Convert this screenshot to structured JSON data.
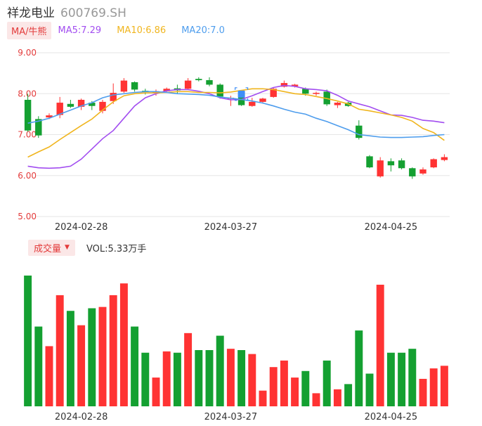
{
  "stock": {
    "name": "祥龙电业",
    "code": "600769.SH"
  },
  "ma_legend": {
    "button_label": "MA/牛熊",
    "items": [
      {
        "label": "MA5:7.29",
        "color": "#a24df0"
      },
      {
        "label": "MA10:6.86",
        "color": "#f0b51e"
      },
      {
        "label": "MA20:7.0",
        "color": "#4e9ded"
      }
    ]
  },
  "volume_legend": {
    "button_label": "成交量",
    "value_label": "VOL:5.33万手"
  },
  "colors": {
    "up": "#ff3333",
    "down": "#14a031",
    "grid": "#e6e6e6",
    "axis_text": "#e33b3b",
    "date_text": "#333333"
  },
  "chart_data": [
    {
      "type": "candlestick",
      "y_ticks": [
        "9.00",
        "8.00",
        "7.00",
        "6.00",
        "5.00"
      ],
      "ylim": [
        5.0,
        9.0
      ],
      "x_tick_labels": [
        {
          "index": 5,
          "label": "2024-02-28"
        },
        {
          "index": 19,
          "label": "2024-03-27"
        },
        {
          "index": 34,
          "label": "2024-04-25"
        }
      ],
      "candles": [
        {
          "o": 7.85,
          "h": 8.0,
          "l": 7.07,
          "c": 7.1
        },
        {
          "o": 7.38,
          "h": 7.45,
          "l": 6.92,
          "c": 6.98
        },
        {
          "o": 7.42,
          "h": 7.52,
          "l": 7.38,
          "c": 7.47
        },
        {
          "o": 7.48,
          "h": 7.92,
          "l": 7.4,
          "c": 7.78
        },
        {
          "o": 7.75,
          "h": 7.85,
          "l": 7.65,
          "c": 7.68
        },
        {
          "o": 7.68,
          "h": 7.88,
          "l": 7.6,
          "c": 7.85
        },
        {
          "o": 7.78,
          "h": 7.82,
          "l": 7.6,
          "c": 7.7
        },
        {
          "o": 7.58,
          "h": 7.85,
          "l": 7.52,
          "c": 7.8
        },
        {
          "o": 7.82,
          "h": 8.25,
          "l": 7.75,
          "c": 8.02
        },
        {
          "o": 8.05,
          "h": 8.38,
          "l": 8.02,
          "c": 8.32
        },
        {
          "o": 8.28,
          "h": 8.3,
          "l": 8.05,
          "c": 8.1
        },
        {
          "o": 8.07,
          "h": 8.12,
          "l": 7.98,
          "c": 8.05
        },
        {
          "o": 8.02,
          "h": 8.1,
          "l": 7.95,
          "c": 8.06
        },
        {
          "o": 8.06,
          "h": 8.15,
          "l": 8.03,
          "c": 8.12
        },
        {
          "o": 8.13,
          "h": 8.22,
          "l": 8.0,
          "c": 8.08
        },
        {
          "o": 8.12,
          "h": 8.38,
          "l": 8.1,
          "c": 8.32
        },
        {
          "o": 8.36,
          "h": 8.4,
          "l": 8.3,
          "c": 8.33
        },
        {
          "o": 8.33,
          "h": 8.4,
          "l": 8.18,
          "c": 8.22
        },
        {
          "o": 8.22,
          "h": 8.25,
          "l": 7.88,
          "c": 7.93
        },
        {
          "o": 7.9,
          "h": 7.95,
          "l": 7.7,
          "c": 7.9
        },
        {
          "o": 7.92,
          "h": 8.05,
          "l": 7.7,
          "c": 7.72
        },
        {
          "o": 7.7,
          "h": 7.9,
          "l": 7.68,
          "c": 7.8
        },
        {
          "o": 7.8,
          "h": 7.9,
          "l": 7.78,
          "c": 7.88
        },
        {
          "o": 7.92,
          "h": 8.15,
          "l": 7.9,
          "c": 8.12
        },
        {
          "o": 8.17,
          "h": 8.32,
          "l": 8.15,
          "c": 8.26
        },
        {
          "o": 8.18,
          "h": 8.24,
          "l": 8.15,
          "c": 8.22
        },
        {
          "o": 8.12,
          "h": 8.15,
          "l": 7.95,
          "c": 8.0
        },
        {
          "o": 8.0,
          "h": 8.05,
          "l": 7.95,
          "c": 8.02
        },
        {
          "o": 8.05,
          "h": 8.1,
          "l": 7.7,
          "c": 7.74
        },
        {
          "o": 7.72,
          "h": 7.8,
          "l": 7.65,
          "c": 7.78
        },
        {
          "o": 7.78,
          "h": 7.8,
          "l": 7.68,
          "c": 7.7
        },
        {
          "o": 7.22,
          "h": 7.35,
          "l": 6.88,
          "c": 6.92
        },
        {
          "o": 6.47,
          "h": 6.5,
          "l": 6.18,
          "c": 6.2
        },
        {
          "o": 5.98,
          "h": 6.45,
          "l": 5.95,
          "c": 6.37
        },
        {
          "o": 6.35,
          "h": 6.42,
          "l": 6.1,
          "c": 6.25
        },
        {
          "o": 6.37,
          "h": 6.42,
          "l": 6.15,
          "c": 6.18
        },
        {
          "o": 6.18,
          "h": 6.2,
          "l": 5.92,
          "c": 5.98
        },
        {
          "o": 6.05,
          "h": 6.2,
          "l": 6.02,
          "c": 6.15
        },
        {
          "o": 6.2,
          "h": 6.42,
          "l": 6.18,
          "c": 6.4
        },
        {
          "o": 6.38,
          "h": 6.52,
          "l": 6.35,
          "c": 6.45
        }
      ],
      "ma_lines": [
        {
          "name": "MA5",
          "color": "#a24df0",
          "values": [
            6.23,
            6.19,
            6.18,
            6.19,
            6.23,
            6.4,
            6.65,
            6.9,
            7.1,
            7.4,
            7.7,
            7.9,
            8.0,
            8.07,
            8.1,
            8.1,
            8.06,
            8.0,
            7.9,
            7.85,
            7.86,
            7.95,
            8.05,
            8.15,
            8.2,
            8.18,
            8.12,
            8.1,
            8.07,
            7.96,
            7.82,
            7.75,
            7.68,
            7.58,
            7.48,
            7.47,
            7.42,
            7.35,
            7.33,
            7.29
          ]
        },
        {
          "name": "MA10",
          "color": "#f0b51e",
          "values": [
            6.45,
            6.58,
            6.7,
            6.88,
            7.05,
            7.22,
            7.38,
            7.6,
            7.8,
            7.95,
            8.0,
            8.02,
            8.02,
            8.03,
            8.05,
            8.05,
            8.03,
            8.03,
            8.02,
            8.04,
            8.08,
            8.12,
            8.12,
            8.1,
            8.05,
            8.0,
            7.98,
            7.93,
            7.88,
            7.82,
            7.75,
            7.62,
            7.58,
            7.53,
            7.48,
            7.42,
            7.33,
            7.15,
            7.05,
            6.86
          ]
        },
        {
          "name": "MA20",
          "color": "#4e9ded",
          "values": [
            7.28,
            7.33,
            7.4,
            7.5,
            7.6,
            7.7,
            7.78,
            7.9,
            7.97,
            8.0,
            8.03,
            8.05,
            8.05,
            8.03,
            8.0,
            7.99,
            7.98,
            7.96,
            7.92,
            7.89,
            7.86,
            7.82,
            7.77,
            7.7,
            7.62,
            7.55,
            7.5,
            7.4,
            7.32,
            7.22,
            7.12,
            7.0,
            6.97,
            6.94,
            6.93,
            6.93,
            6.94,
            6.95,
            6.98,
            7.0
          ]
        }
      ]
    },
    {
      "type": "bar",
      "title": "成交量",
      "values": [
        100,
        61,
        46,
        85,
        73,
        62,
        75,
        76,
        85,
        94,
        61,
        41,
        22,
        42,
        41,
        56,
        43,
        43,
        54,
        44,
        43,
        40,
        12,
        30,
        35,
        22,
        27,
        10,
        35,
        13,
        17,
        58,
        25,
        93,
        41,
        41,
        44,
        21,
        29,
        31
      ],
      "colors_by_candle": true
    }
  ]
}
